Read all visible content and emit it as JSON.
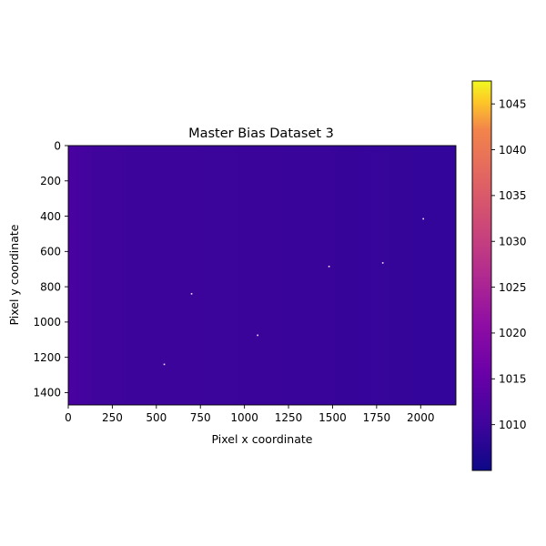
{
  "chart_data": {
    "type": "heatmap",
    "title": "Master Bias Dataset 3",
    "xlabel": "Pixel x coordinate",
    "ylabel": "Pixel y coordinate",
    "xlim": [
      0,
      2200
    ],
    "ylim": [
      1470,
      0
    ],
    "x_ticks": [
      0,
      250,
      500,
      750,
      1000,
      1250,
      1500,
      1750,
      2000
    ],
    "y_ticks": [
      0,
      200,
      400,
      600,
      800,
      1000,
      1200,
      1400
    ],
    "colormap": "plasma",
    "colorbar": {
      "range": [
        1005,
        1047.5
      ],
      "ticks": [
        1010,
        1015,
        1020,
        1025,
        1030,
        1035,
        1040,
        1045
      ],
      "placement": "right"
    },
    "image_values": {
      "left_edge_level": 1013,
      "background_level": 1009,
      "right_edge_level": 1008
    },
    "hot_pixels": [
      {
        "x": 700,
        "y": 840
      },
      {
        "x": 1480,
        "y": 685
      },
      {
        "x": 1785,
        "y": 665
      },
      {
        "x": 2015,
        "y": 415
      },
      {
        "x": 1075,
        "y": 1075
      },
      {
        "x": 545,
        "y": 1240
      }
    ]
  }
}
